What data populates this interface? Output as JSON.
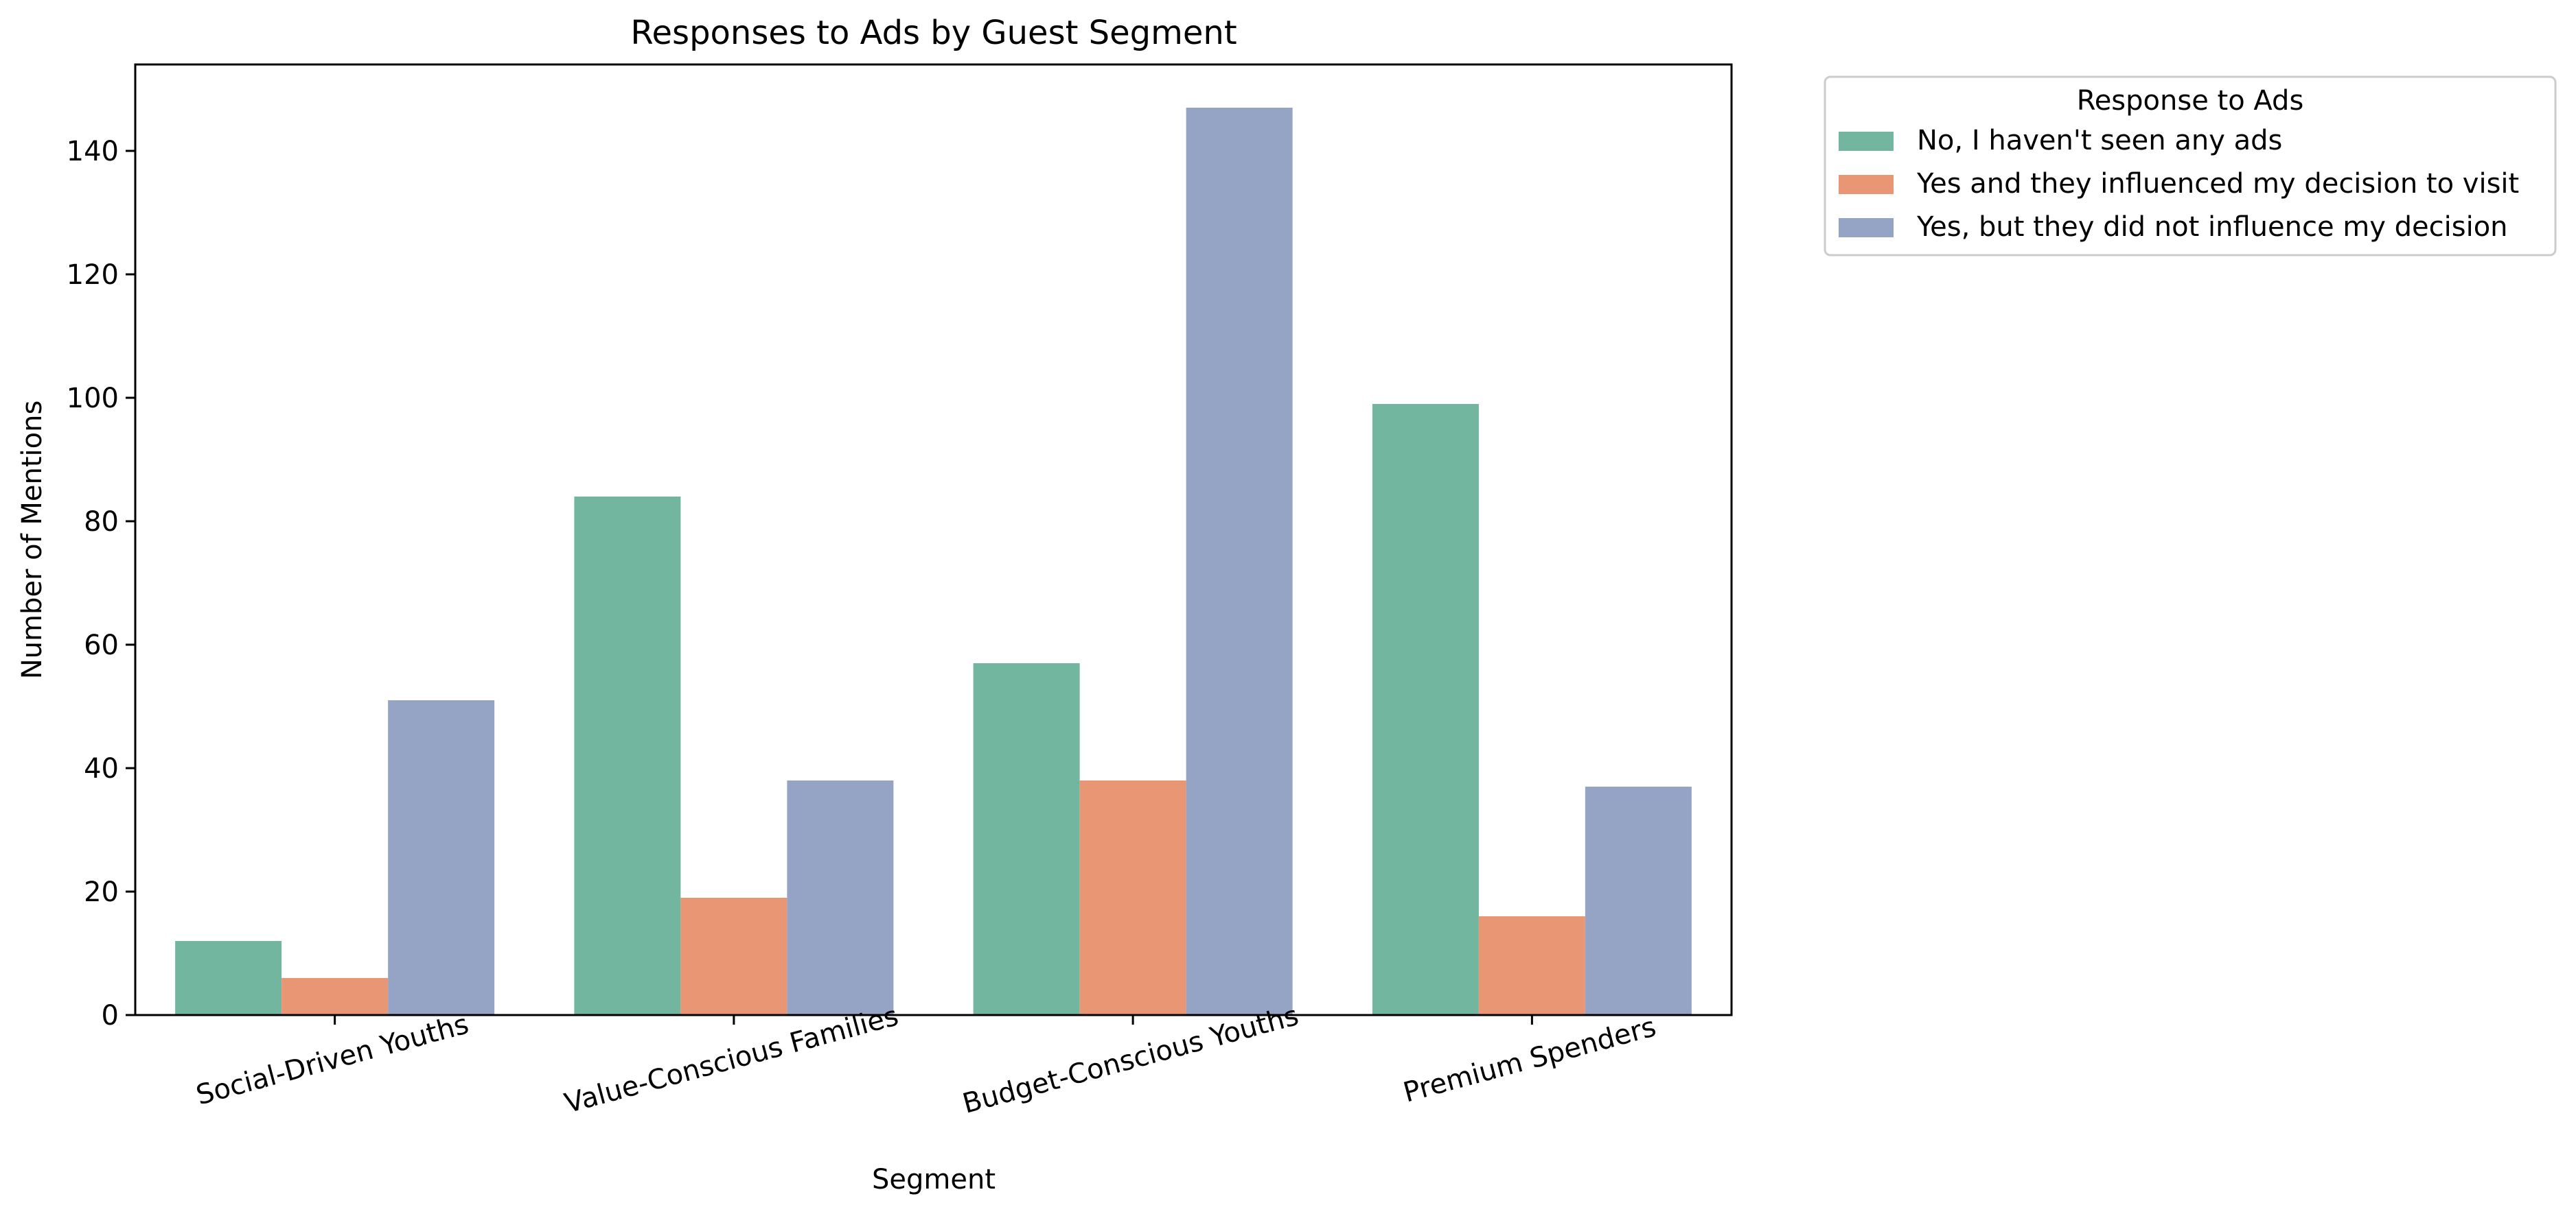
{
  "chart_data": {
    "type": "bar",
    "title": "Responses to Ads by Guest Segment",
    "xlabel": "Segment",
    "ylabel": "Number of Mentions",
    "ylim": [
      0,
      154
    ],
    "yticks": [
      0,
      20,
      40,
      60,
      80,
      100,
      120,
      140
    ],
    "categories": [
      "Social-Driven Youths",
      "Value-Conscious Families",
      "Budget-Conscious Youths",
      "Premium Spenders"
    ],
    "legend": {
      "title": "Response to Ads",
      "placement": "outside-top-right"
    },
    "grid": false,
    "series": [
      {
        "name": "No, I haven't seen any ads",
        "color": "#72b6a0",
        "values": [
          12,
          84,
          57,
          99
        ]
      },
      {
        "name": "Yes and they influenced my decision to visit",
        "color": "#e99675",
        "values": [
          6,
          19,
          38,
          16
        ]
      },
      {
        "name": "Yes, but they did not influence my decision",
        "color": "#95a4c4",
        "values": [
          51,
          38,
          147,
          37
        ]
      }
    ]
  }
}
